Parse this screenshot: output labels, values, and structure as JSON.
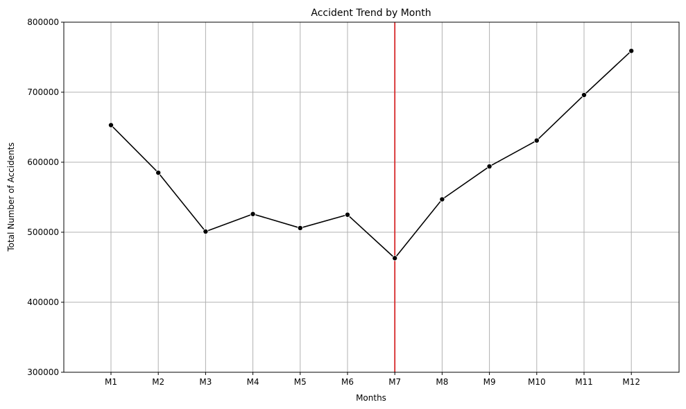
{
  "chart_data": {
    "type": "line",
    "title": "Accident Trend by Month",
    "xlabel": "Months",
    "ylabel": "Total Number of Accidents",
    "categories": [
      "M1",
      "M2",
      "M3",
      "M4",
      "M5",
      "M6",
      "M7",
      "M8",
      "M9",
      "M10",
      "M11",
      "M12"
    ],
    "series": [
      {
        "values": [
          653000,
          585000,
          501000,
          526000,
          506000,
          525000,
          463000,
          547000,
          594000,
          631000,
          696000,
          759000
        ],
        "color": "#000000",
        "marker": "circle"
      }
    ],
    "ylim": [
      300000,
      800000
    ],
    "yticks": [
      300000,
      400000,
      500000,
      600000,
      700000,
      800000
    ],
    "grid": true,
    "reference_line": {
      "orientation": "vertical",
      "at": "M7",
      "color": "#d62728"
    }
  }
}
